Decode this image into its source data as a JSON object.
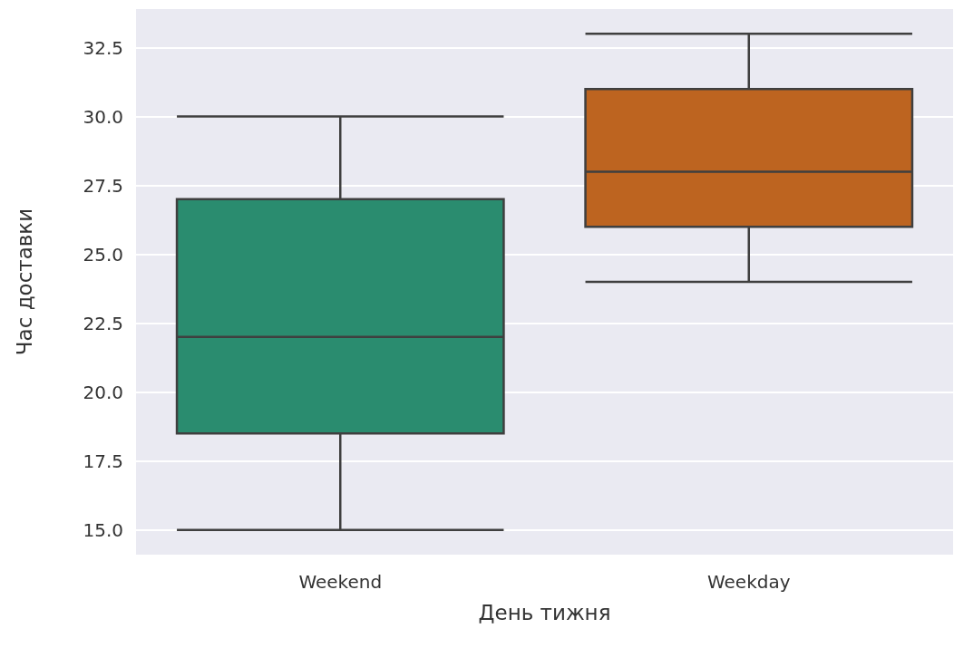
{
  "chart_data": {
    "type": "box",
    "xlabel": "День тижня",
    "ylabel": "Час доставки",
    "categories": [
      "Weekend",
      "Weekday"
    ],
    "boxes": [
      {
        "low": 15,
        "q1": 18.5,
        "median": 22,
        "q3": 27,
        "high": 30
      },
      {
        "low": 24,
        "q1": 26,
        "median": 28,
        "q3": 31,
        "high": 33
      }
    ],
    "colors": [
      "#2a8c6f",
      "#bd6420"
    ],
    "ylim": [
      14.1,
      33.9
    ],
    "yticks": [
      {
        "value": 15,
        "label": "15.0"
      },
      {
        "value": 17.5,
        "label": "17.5"
      },
      {
        "value": 20,
        "label": "20.0"
      },
      {
        "value": 22.5,
        "label": "22.5"
      },
      {
        "value": 25,
        "label": "25.0"
      },
      {
        "value": 27.5,
        "label": "27.5"
      },
      {
        "value": 30,
        "label": "30.0"
      },
      {
        "value": 32.5,
        "label": "32.5"
      }
    ],
    "grid": "y"
  }
}
